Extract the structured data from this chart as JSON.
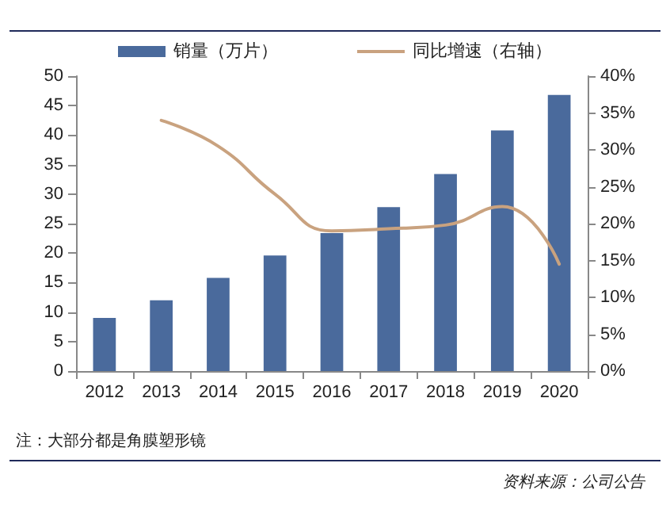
{
  "chart_data": {
    "type": "bar",
    "categories": [
      "2012",
      "2013",
      "2014",
      "2015",
      "2016",
      "2017",
      "2018",
      "2019",
      "2020"
    ],
    "series": [
      {
        "name": "销量（万片）",
        "color": "#4a6a9c",
        "values": [
          9,
          12,
          15.8,
          19.6,
          23.4,
          27.8,
          33.4,
          40.8,
          46.8
        ]
      },
      {
        "name": "同比增速（右轴）",
        "type": "line",
        "axis": "y2",
        "color": "#c9a27f",
        "values": [
          null,
          34,
          30.5,
          24,
          19,
          19.3,
          19.8,
          22.3,
          14.5
        ]
      }
    ],
    "ylim": [
      0,
      50
    ],
    "yticks": [
      0,
      5,
      10,
      15,
      20,
      25,
      30,
      35,
      40,
      45,
      50
    ],
    "y2lim": [
      0,
      40
    ],
    "y2ticks": [
      {
        "value": 0,
        "label": "0%"
      },
      {
        "value": 5,
        "label": "5%"
      },
      {
        "value": 10,
        "label": "10%"
      },
      {
        "value": 15,
        "label": "15%"
      },
      {
        "value": 20,
        "label": "20%"
      },
      {
        "value": 25,
        "label": "25%"
      },
      {
        "value": 30,
        "label": "30%"
      },
      {
        "value": 35,
        "label": "35%"
      },
      {
        "value": 40,
        "label": "40%"
      }
    ],
    "legend": "top",
    "grid": false,
    "marker": "none",
    "annotations": [
      "注：大部分都是角膜塑形镜",
      "资料来源：公司公告"
    ]
  }
}
